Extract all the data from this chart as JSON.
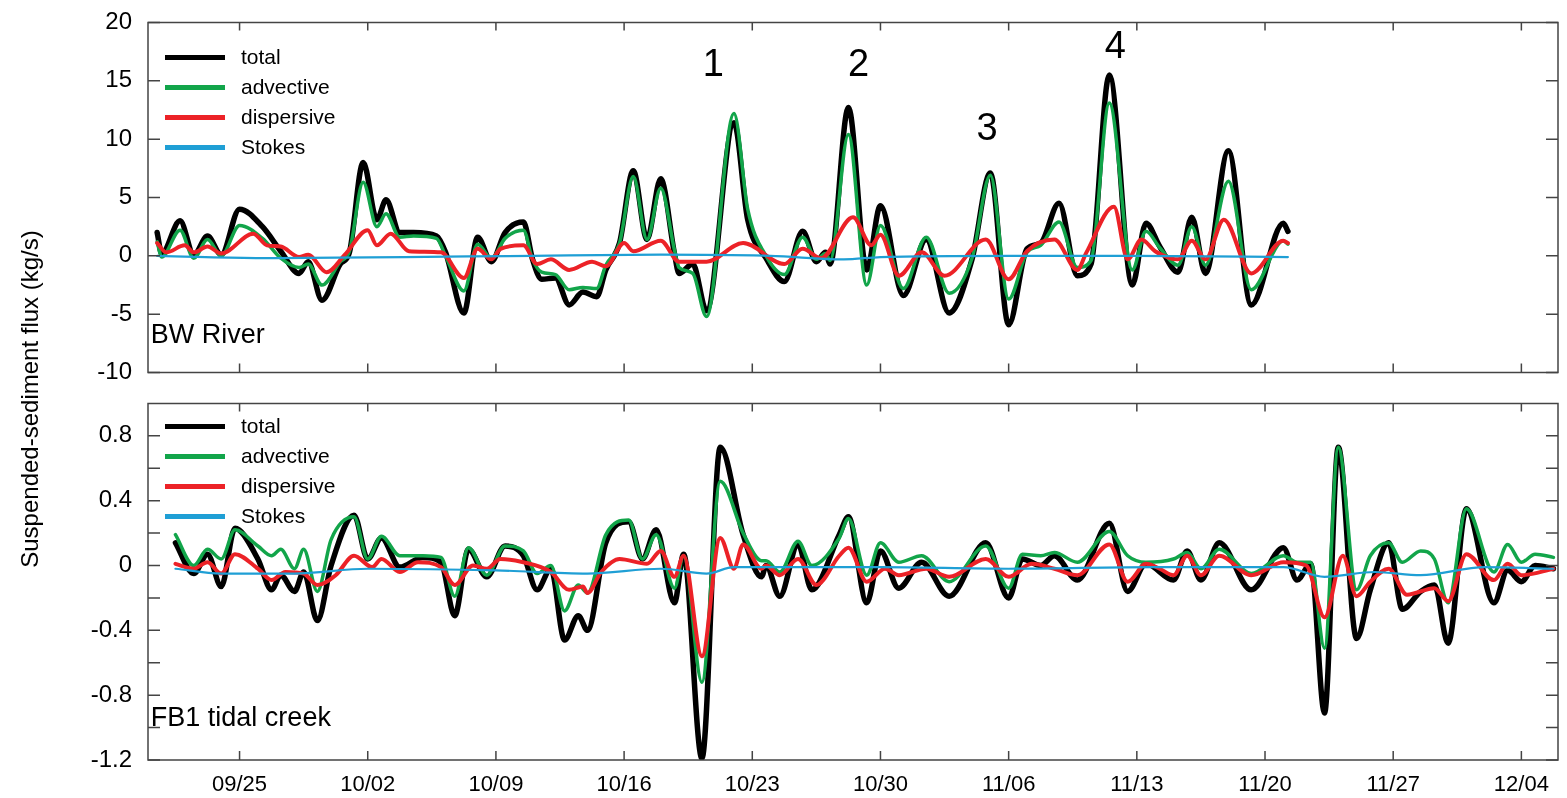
{
  "chart_data": [
    {
      "type": "line",
      "ylabel": "Suspended-sediment flux (kg/s)",
      "tick_labels": "y",
      "legend": "top left",
      "xlim": [
        "--09-20",
        "--12-06"
      ],
      "ylim": [
        -10,
        20
      ],
      "yticks": [
        -10,
        -5,
        0,
        5,
        10,
        15,
        20
      ],
      "xticks": [
        {
          "value": "--09-25",
          "label": null
        },
        {
          "value": "--10-02",
          "label": null
        },
        {
          "value": "--10-09",
          "label": null
        },
        {
          "value": "--10-16",
          "label": null
        },
        {
          "value": "--10-23",
          "label": null
        },
        {
          "value": "--10-30",
          "label": null
        },
        {
          "value": "--11-06",
          "label": null
        },
        {
          "value": "--11-13",
          "label": null
        },
        {
          "value": "--11-20",
          "label": null
        },
        {
          "value": "--11-27",
          "label": null
        },
        {
          "value": "--12-04",
          "label": null
        }
      ],
      "annotations": [
        "BW River",
        "1",
        "2",
        "3",
        "4"
      ],
      "series": [
        {
          "name": "total",
          "color": "#000000",
          "x": [
            "--09-20T12:00",
            "--09-20T18:00",
            "--09-21T18:00",
            "--09-22T12:00",
            "--09-23T06:00",
            "--09-24",
            "--09-25",
            "--09-26T06:00",
            "--09-27T06:00",
            "--09-28T06:00",
            "--09-28T18:00",
            "--09-29T12:00",
            "--09-30T12:00",
            "--10-01",
            "--10-01T18:00",
            "--10-02T12:00",
            "--10-03",
            "--10-03T18:00",
            "--10-04T12:00",
            "--10-05T18:00",
            "--10-06T06:00",
            "--10-07T06:00",
            "--10-08",
            "--10-08T18:00",
            "--10-09T12:00",
            "--10-10T12:00",
            "--10-11",
            "--10-11T12:00",
            "--10-12T06:00",
            "--10-13",
            "--10-13T18:00",
            "--10-14T12:00",
            "--10-15",
            "--10-15T18:00",
            "--10-16T12:00",
            "--10-17T06:00",
            "--10-18",
            "--10-18T18:00",
            "--10-19",
            "--10-19T18:00",
            "--10-20T12:00",
            "--10-22",
            "--10-22T18:00",
            "--10-23T18:00",
            "--10-24T18:00",
            "--10-25T18:00",
            "--10-26T12:00",
            "--10-27",
            "--10-27T06:00",
            "--10-28T06:00",
            "--10-29T06:00",
            "--10-30",
            "--10-31T06:00",
            "--11-01T12:00",
            "--11-02T18:00",
            "--11-04",
            "--11-05",
            "--11-06",
            "--11-07",
            "--11-07T18:00",
            "--11-08T18:00",
            "--11-09T18:00",
            "--11-10T12:00",
            "--11-11T12:00",
            "--11-12T18:00",
            "--11-13T12:00",
            "--11-14T06:00",
            "--11-15T06:00",
            "--11-16",
            "--11-16T18:00",
            "--11-18",
            "--11-19T06:00",
            "--11-21",
            "--11-21T06:00"
          ],
          "values": [
            2.0,
            0.2,
            3.0,
            0.1,
            1.7,
            0.1,
            4.0,
            2.5,
            0.4,
            -1.5,
            -0.5,
            -3.8,
            -0.7,
            0.3,
            8.0,
            3.1,
            4.8,
            2.0,
            2.0,
            1.7,
            0.3,
            -4.9,
            1.6,
            -0.5,
            2.0,
            2.9,
            -0.3,
            -2.0,
            -1.9,
            -4.2,
            -3.1,
            -3.5,
            -1.2,
            1.1,
            7.3,
            1.4,
            6.6,
            0.2,
            -1.5,
            -0.7,
            -4.7,
            11.4,
            3.1,
            -0.2,
            -2.2,
            2.1,
            -0.5,
            0.3,
            -0.7,
            12.7,
            -1.2,
            4.3,
            -3.4,
            1.4,
            -4.9,
            -0.3,
            7.1,
            -5.9,
            0.6,
            1.1,
            4.5,
            -1.7,
            -0.7,
            15.5,
            -2.5,
            2.8,
            0.8,
            -1.4,
            3.3,
            -1.5,
            9.0,
            -4.2,
            2.8,
            2.1
          ]
        },
        {
          "name": "advective",
          "color": "#12a54a",
          "x": [
            "--09-20T12:00",
            "--09-20T18:00",
            "--09-21T18:00",
            "--09-22T12:00",
            "--09-23T06:00",
            "--09-24",
            "--09-25",
            "--09-26T06:00",
            "--09-27T06:00",
            "--09-28T06:00",
            "--09-28T18:00",
            "--09-29T12:00",
            "--09-30T12:00",
            "--10-01",
            "--10-01T18:00",
            "--10-02T12:00",
            "--10-03",
            "--10-03T18:00",
            "--10-04T12:00",
            "--10-05T18:00",
            "--10-06T06:00",
            "--10-07T06:00",
            "--10-08",
            "--10-08T18:00",
            "--10-09T12:00",
            "--10-10T12:00",
            "--10-11",
            "--10-11T12:00",
            "--10-12T06:00",
            "--10-13",
            "--10-13T18:00",
            "--10-14T12:00",
            "--10-15",
            "--10-15T18:00",
            "--10-16T12:00",
            "--10-17T06:00",
            "--10-18",
            "--10-18T18:00",
            "--10-19",
            "--10-19T18:00",
            "--10-20T12:00",
            "--10-22",
            "--10-22T18:00",
            "--10-23T18:00",
            "--10-24T18:00",
            "--10-25T18:00",
            "--10-26T12:00",
            "--10-27",
            "--10-27T06:00",
            "--10-28T06:00",
            "--10-29T06:00",
            "--10-30",
            "--10-31T06:00",
            "--11-01T12:00",
            "--11-02T18:00",
            "--11-04",
            "--11-05",
            "--11-06",
            "--11-07",
            "--11-07T18:00",
            "--11-08T18:00",
            "--11-09T18:00",
            "--11-10T12:00",
            "--11-11T12:00",
            "--11-12T18:00",
            "--11-13T12:00",
            "--11-14T06:00",
            "--11-15T06:00",
            "--11-16",
            "--11-16T18:00",
            "--11-18",
            "--11-19T06:00",
            "--11-21",
            "--11-21T06:00"
          ],
          "values": [
            1.2,
            -0.1,
            2.2,
            -0.2,
            1.4,
            0.0,
            2.6,
            1.5,
            -0.2,
            -1.0,
            -0.7,
            -2.5,
            -0.5,
            0.4,
            6.3,
            2.5,
            3.6,
            1.6,
            1.7,
            1.5,
            0.0,
            -3.0,
            1.0,
            -0.2,
            1.5,
            2.2,
            -0.3,
            -1.4,
            -1.6,
            -2.9,
            -2.7,
            -2.8,
            -0.8,
            1.1,
            6.8,
            1.4,
            5.8,
            0.5,
            -1.0,
            -1.5,
            -5.2,
            12.2,
            4.0,
            0.0,
            -1.6,
            1.6,
            -0.3,
            0.2,
            -0.4,
            10.4,
            -2.5,
            2.6,
            -2.8,
            1.6,
            -3.2,
            -0.2,
            6.9,
            -3.7,
            0.3,
            0.9,
            2.9,
            -1.0,
            -0.4,
            13.1,
            -1.2,
            2.1,
            0.7,
            -0.8,
            2.5,
            -0.8,
            6.4,
            -2.9,
            1.3,
            1.0
          ]
        },
        {
          "name": "dispersive",
          "color": "#ec2227",
          "x": [
            "--09-20T12:00",
            "--09-21",
            "--09-22",
            "--09-22T12:00",
            "--09-23T06:00",
            "--09-24",
            "--09-25T18:00",
            "--09-26T12:00",
            "--09-27T06:00",
            "--09-28T06:00",
            "--09-28T18:00",
            "--09-29T18:00",
            "--09-30T18:00",
            "--10-02",
            "--10-02T12:00",
            "--10-03T06:00",
            "--10-04T06:00",
            "--10-06",
            "--10-07T06:00",
            "--10-08",
            "--10-08T18:00",
            "--10-09T06:00",
            "--10-10T12:00",
            "--10-11T06:00",
            "--10-12",
            "--10-13",
            "--10-14T06:00",
            "--10-15",
            "--10-16",
            "--10-16T12:00",
            "--10-18",
            "--10-19",
            "--10-20T12:00",
            "--10-22T12:00",
            "--10-24T18:00",
            "--10-25T18:00",
            "--10-26T18:00",
            "--10-28T12:00",
            "--10-29T12:00",
            "--10-30",
            "--10-31",
            "--11-01T06:00",
            "--11-02T12:00",
            "--11-04T18:00",
            "--11-06",
            "--11-07",
            "--11-08T12:00",
            "--11-09T18:00",
            "--11-10T06:00",
            "--11-11T18:00",
            "--11-12T12:00",
            "--11-13T06:00",
            "--11-14",
            "--11-15T06:00",
            "--11-16",
            "--11-16T18:00",
            "--11-17T18:00",
            "--11-19T06:00",
            "--11-21",
            "--11-21T06:00"
          ],
          "values": [
            1.1,
            0.3,
            0.9,
            0.3,
            0.8,
            0.2,
            1.9,
            0.9,
            0.8,
            -0.1,
            0.1,
            -1.4,
            0.1,
            2.2,
            0.9,
            1.9,
            0.4,
            0.3,
            -1.9,
            0.6,
            -0.3,
            0.6,
            0.9,
            -0.7,
            -0.3,
            -1.2,
            -0.5,
            -0.9,
            1.1,
            0.4,
            1.3,
            -0.5,
            -0.5,
            1.1,
            -0.7,
            0.6,
            -0.2,
            3.3,
            0.9,
            1.8,
            -1.7,
            0.3,
            -1.7,
            1.4,
            -2.0,
            0.4,
            1.4,
            -1.2,
            0.3,
            4.2,
            -0.3,
            1.4,
            0.4,
            -0.3,
            1.3,
            -0.3,
            3.1,
            -1.5,
            1.3,
            1.1
          ]
        },
        {
          "name": "Stokes",
          "color": "#1f9fd5",
          "x": [
            "--09-20T12:00",
            "--09-27",
            "--10-04",
            "--10-11",
            "--10-18",
            "--10-24",
            "--10-28",
            "--10-30",
            "--11-06",
            "--11-13",
            "--11-21T06:00"
          ],
          "values": [
            0.0,
            -0.2,
            -0.1,
            0.0,
            0.1,
            0.0,
            -0.3,
            -0.1,
            0.0,
            0.0,
            -0.1
          ]
        }
      ]
    },
    {
      "type": "line",
      "legend": "top left",
      "xlim": [
        "--09-20",
        "--12-06"
      ],
      "ylim": [
        -1.2,
        1.0
      ],
      "yticks": [
        -1.2,
        {
          "value": -1.0,
          "label": null
        },
        -0.8,
        {
          "value": -0.6,
          "label": null
        },
        -0.4,
        {
          "value": -0.2,
          "label": null
        },
        0,
        {
          "value": 0.2,
          "label": null
        },
        0.4,
        {
          "value": 0.6,
          "label": null
        },
        0.8
      ],
      "xticks": [
        {
          "value": "--09-25",
          "label": "09/25"
        },
        {
          "value": "--10-02",
          "label": "10/02"
        },
        {
          "value": "--10-09",
          "label": "10/09"
        },
        {
          "value": "--10-16",
          "label": "10/16"
        },
        {
          "value": "--10-23",
          "label": "10/23"
        },
        {
          "value": "--10-30",
          "label": "10/30"
        },
        {
          "value": "--11-06",
          "label": "11/06"
        },
        {
          "value": "--11-13",
          "label": "11/13"
        },
        {
          "value": "--11-20",
          "label": "11/20"
        },
        {
          "value": "--11-27",
          "label": "11/27"
        },
        {
          "value": "--12-04",
          "label": "12/04"
        }
      ],
      "annotations": [
        "FB1 tidal creek"
      ],
      "series": [
        {
          "name": "total",
          "color": "#000000",
          "x": [
            "--09-21T12:00",
            "--09-22T12:00",
            "--09-23T06:00",
            "--09-24",
            "--09-24T18:00",
            "--09-26",
            "--09-26T18:00",
            "--09-27T06:00",
            "--09-28",
            "--09-28T12:00",
            "--09-29T06:00",
            "--09-30",
            "--10-01T06:00",
            "--10-02",
            "--10-02T18:00",
            "--10-03T18:00",
            "--10-05",
            "--10-06",
            "--10-06T18:00",
            "--10-07T12:00",
            "--10-08T12:00",
            "--10-09T12:00",
            "--10-10T12:00",
            "--10-11T06:00",
            "--10-12",
            "--10-12T18:00",
            "--10-13T12:00",
            "--10-14",
            "--10-15",
            "--10-16T06:00",
            "--10-17",
            "--10-17T18:00",
            "--10-18T18:00",
            "--10-19T06:00",
            "--10-20T06:00",
            "--10-21T06:00",
            "--10-22T12:00",
            "--10-23T12:00",
            "--10-23T18:00",
            "--10-24T12:00",
            "--10-25T12:00",
            "--10-26T06:00",
            "--10-27T18:00",
            "--10-28T06:00",
            "--10-29T06:00",
            "--10-30",
            "--10-31",
            "--11-01T06:00",
            "--11-02T18:00",
            "--11-04T18:00",
            "--11-06",
            "--11-06T18:00",
            "--11-07T18:00",
            "--11-08T12:00",
            "--11-09T18:00",
            "--11-11T12:00",
            "--11-12T12:00",
            "--11-13T12:00",
            "--11-15",
            "--11-15T18:00",
            "--11-16T12:00",
            "--11-17T12:00",
            "--11-19T06:00",
            "--11-21",
            "--11-21T18:00",
            "--11-22T12:00",
            "--11-23T06:00",
            "--11-24",
            "--11-25",
            "--11-25T18:00",
            "--11-26T18:00",
            "--11-27T12:00",
            "--11-28T12:00",
            "--11-29T06:00",
            "--11-30",
            "--12-01",
            "--12-02T12:00",
            "--12-03T06:00",
            "--12-04",
            "--12-04T18:00",
            "--12-05T18:00"
          ],
          "values": [
            0.14,
            -0.05,
            0.07,
            -0.13,
            0.23,
            0.04,
            -0.15,
            -0.06,
            -0.16,
            -0.04,
            -0.34,
            0.0,
            0.31,
            0.04,
            0.17,
            -0.01,
            0.05,
            0.02,
            -0.31,
            0.1,
            -0.07,
            0.12,
            0.06,
            -0.15,
            -0.02,
            -0.46,
            -0.31,
            -0.4,
            0.14,
            0.27,
            0.04,
            0.22,
            -0.23,
            0.07,
            -1.19,
            0.73,
            0.19,
            -0.07,
            0.0,
            -0.19,
            0.13,
            -0.15,
            0.19,
            0.3,
            -0.23,
            0.09,
            -0.14,
            0.02,
            -0.19,
            0.14,
            -0.2,
            0.04,
            0.0,
            0.06,
            -0.09,
            0.26,
            -0.16,
            0.01,
            -0.09,
            0.09,
            -0.09,
            0.14,
            -0.15,
            0.11,
            -0.09,
            0.01,
            -0.91,
            0.73,
            -0.45,
            -0.15,
            0.14,
            -0.27,
            -0.16,
            -0.12,
            -0.48,
            0.35,
            -0.23,
            -0.03,
            -0.1,
            0.0,
            -0.02
          ]
        },
        {
          "name": "advective",
          "color": "#12a54a",
          "x": [
            "--09-21T12:00",
            "--09-22T12:00",
            "--09-23T06:00",
            "--09-24",
            "--09-24T18:00",
            "--09-26",
            "--09-26T18:00",
            "--09-27T06:00",
            "--09-28",
            "--09-28T12:00",
            "--09-29T06:00",
            "--09-30",
            "--10-01T06:00",
            "--10-02",
            "--10-02T18:00",
            "--10-03T18:00",
            "--10-05",
            "--10-06",
            "--10-06T18:00",
            "--10-07T12:00",
            "--10-08T12:00",
            "--10-09T12:00",
            "--10-10T12:00",
            "--10-11T06:00",
            "--10-12",
            "--10-12T18:00",
            "--10-13T12:00",
            "--10-14",
            "--10-15",
            "--10-16T06:00",
            "--10-17",
            "--10-17T18:00",
            "--10-18T18:00",
            "--10-19T06:00",
            "--10-20T06:00",
            "--10-21T06:00",
            "--10-22T12:00",
            "--10-23T12:00",
            "--10-23T18:00",
            "--10-24T12:00",
            "--10-25T12:00",
            "--10-26T06:00",
            "--10-27T18:00",
            "--10-28T06:00",
            "--10-29T06:00",
            "--10-30",
            "--10-31",
            "--11-01T06:00",
            "--11-02T18:00",
            "--11-04T18:00",
            "--11-06",
            "--11-06T18:00",
            "--11-07T18:00",
            "--11-08T12:00",
            "--11-09T18:00",
            "--11-11T12:00",
            "--11-12T12:00",
            "--11-13T12:00",
            "--11-15",
            "--11-15T18:00",
            "--11-16T12:00",
            "--11-17T12:00",
            "--11-19T06:00",
            "--11-21",
            "--11-21T18:00",
            "--11-22T12:00",
            "--11-23T06:00",
            "--11-24",
            "--11-25",
            "--11-25T18:00",
            "--11-26T18:00",
            "--11-27T12:00",
            "--11-28T12:00",
            "--11-29T06:00",
            "--11-30",
            "--12-01",
            "--12-02T12:00",
            "--12-03T06:00",
            "--12-04",
            "--12-04T18:00",
            "--12-05T18:00"
          ],
          "values": [
            0.19,
            0.0,
            0.1,
            0.04,
            0.22,
            0.12,
            0.06,
            0.1,
            -0.02,
            0.1,
            -0.16,
            0.16,
            0.3,
            0.04,
            0.18,
            0.06,
            0.06,
            0.05,
            -0.19,
            0.11,
            -0.06,
            0.12,
            0.09,
            -0.05,
            0.0,
            -0.28,
            -0.12,
            -0.17,
            0.19,
            0.28,
            0.04,
            0.19,
            -0.14,
            0.06,
            -0.72,
            0.52,
            0.2,
            0.03,
            0.03,
            -0.04,
            0.15,
            0.0,
            0.17,
            0.29,
            -0.06,
            0.14,
            0.02,
            0.06,
            -0.1,
            0.12,
            -0.14,
            0.07,
            0.06,
            0.08,
            0.02,
            0.21,
            0.06,
            0.02,
            0.04,
            0.08,
            -0.02,
            0.1,
            -0.05,
            0.06,
            0.02,
            0.02,
            -0.51,
            0.73,
            -0.15,
            0.06,
            0.14,
            0.02,
            0.09,
            0.04,
            -0.23,
            0.35,
            -0.04,
            0.13,
            0.02,
            0.07,
            0.05
          ]
        },
        {
          "name": "dispersive",
          "color": "#ec2227",
          "x": [
            "--09-21T12:00",
            "--09-22T12:00",
            "--09-23T06:00",
            "--09-24",
            "--09-24T18:00",
            "--09-26",
            "--09-26T18:00",
            "--09-27T12:00",
            "--09-28T12:00",
            "--09-29T06:00",
            "--09-30T06:00",
            "--10-01T06:00",
            "--10-02T06:00",
            "--10-02T18:00",
            "--10-03T18:00",
            "--10-04T18:00",
            "--10-06",
            "--10-06T18:00",
            "--10-07T18:00",
            "--10-08T12:00",
            "--10-09T06:00",
            "--10-10T12:00",
            "--10-12",
            "--10-13",
            "--10-13T18:00",
            "--10-14",
            "--10-14T18:00",
            "--10-15T18:00",
            "--10-17T06:00",
            "--10-18",
            "--10-18T18:00",
            "--10-19T06:00",
            "--10-20T06:00",
            "--10-21T06:00",
            "--10-22",
            "--10-22T12:00",
            "--10-23T12:00",
            "--10-23T18:00",
            "--10-24T12:00",
            "--10-25T12:00",
            "--10-26T12:00",
            "--10-27T18:00",
            "--10-28T06:00",
            "--10-29T06:00",
            "--10-30T06:00",
            "--10-31",
            "--11-01T12:00",
            "--11-02T18:00",
            "--11-04T18:00",
            "--11-06",
            "--11-07T06:00",
            "--11-08T12:00",
            "--11-09T18:00",
            "--11-11T12:00",
            "--11-12T12:00",
            "--11-13T12:00",
            "--11-14T06:00",
            "--11-15",
            "--11-15T18:00",
            "--11-16T12:00",
            "--11-17T12:00",
            "--11-19T06:00",
            "--11-21",
            "--11-22T06:00",
            "--11-23T06:00",
            "--11-24T06:00",
            "--11-25",
            "--11-25T18:00",
            "--11-26T18:00",
            "--11-27T18:00",
            "--11-29T06:00",
            "--11-30",
            "--12-01",
            "--12-02T12:00",
            "--12-03T06:00",
            "--12-04",
            "--12-05T18:00"
          ],
          "values": [
            0.01,
            -0.02,
            0.02,
            -0.05,
            0.07,
            -0.02,
            -0.09,
            -0.04,
            -0.05,
            -0.12,
            -0.06,
            0.06,
            -0.01,
            0.04,
            -0.04,
            0.02,
            -0.01,
            -0.12,
            0.0,
            -0.02,
            0.04,
            0.02,
            -0.04,
            -0.15,
            -0.13,
            -0.17,
            -0.04,
            0.04,
            0.01,
            0.09,
            -0.07,
            0.06,
            -0.56,
            0.17,
            -0.02,
            0.13,
            -0.02,
            0.0,
            -0.06,
            0.04,
            -0.12,
            0.06,
            0.11,
            -0.1,
            -0.02,
            -0.06,
            -0.02,
            -0.07,
            0.04,
            -0.07,
            0.01,
            -0.02,
            -0.06,
            0.13,
            -0.1,
            0.01,
            -0.02,
            -0.06,
            0.06,
            -0.06,
            0.06,
            -0.06,
            0.02,
            0.0,
            -0.32,
            0.06,
            -0.19,
            -0.1,
            -0.02,
            -0.18,
            -0.14,
            -0.22,
            0.07,
            -0.09,
            0.01,
            -0.06,
            -0.02
          ]
        },
        {
          "name": "Stokes",
          "color": "#1f9fd5",
          "x": [
            "--09-21T12:00",
            "--09-24",
            "--09-28",
            "--10-02",
            "--10-09",
            "--10-14",
            "--10-18",
            "--10-20T12:00",
            "--10-22",
            "--10-30",
            "--11-06",
            "--11-14",
            "--11-21",
            "--11-23T06:00",
            "--11-26",
            "--11-28T12:00",
            "--12-02",
            "--12-05T18:00"
          ],
          "values": [
            -0.02,
            -0.05,
            -0.05,
            -0.02,
            -0.03,
            -0.05,
            -0.02,
            -0.05,
            -0.01,
            -0.01,
            -0.02,
            -0.01,
            -0.01,
            -0.07,
            -0.04,
            -0.06,
            -0.01,
            -0.02
          ]
        }
      ]
    }
  ]
}
